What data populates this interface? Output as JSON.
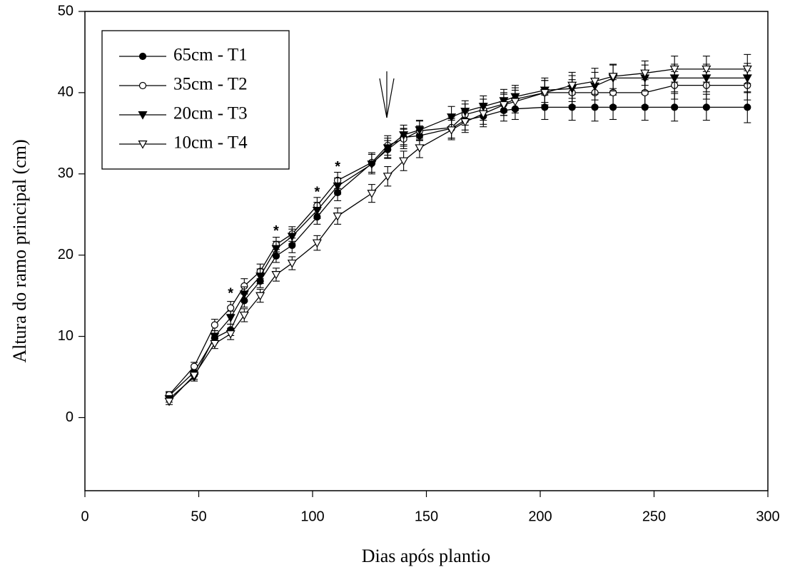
{
  "chart_data": {
    "type": "line",
    "x_label": "Dias após plantio",
    "y_label": "Altura do ramo principal (cm)",
    "x": [
      37,
      48,
      57,
      64,
      70,
      77,
      84,
      91,
      102,
      111,
      126,
      133,
      140,
      147,
      161,
      167,
      175,
      184,
      189,
      202,
      214,
      224,
      232,
      246,
      259,
      273,
      291
    ],
    "series": [
      {
        "name": "65cm - T1",
        "color": "#000000",
        "marker": "circle",
        "filled": true,
        "values": [
          2.7,
          5.6,
          9.8,
          10.8,
          14.4,
          16.8,
          19.9,
          21.2,
          24.7,
          27.7,
          31.3,
          33.0,
          34.5,
          34.7,
          35.6,
          36.6,
          37.1,
          37.8,
          38.0,
          38.2,
          38.2,
          38.2,
          38.2,
          38.2,
          38.2,
          38.2,
          38.2
        ],
        "errors": [
          0.4,
          0.5,
          0.6,
          0.7,
          0.8,
          0.8,
          0.8,
          0.9,
          0.9,
          1.0,
          1.1,
          1.1,
          1.1,
          1.2,
          1.2,
          1.2,
          1.3,
          1.3,
          1.3,
          1.5,
          1.6,
          1.7,
          1.5,
          1.6,
          1.7,
          1.6,
          1.9
        ]
      },
      {
        "name": "35cm - T2",
        "color": "#000000",
        "marker": "circle",
        "filled": false,
        "values": [
          2.8,
          6.3,
          11.4,
          13.5,
          16.2,
          18.0,
          21.3,
          22.6,
          26.1,
          29.2,
          31.4,
          33.5,
          34.3,
          35.3,
          35.7,
          37.3,
          37.9,
          38.6,
          39.2,
          40.0,
          40.0,
          40.0,
          40.0,
          40.0,
          40.9,
          40.9,
          40.9
        ],
        "errors": [
          0.4,
          0.5,
          0.7,
          0.8,
          0.9,
          0.9,
          0.9,
          0.9,
          1.0,
          1.0,
          1.2,
          1.2,
          1.2,
          1.2,
          1.3,
          1.3,
          1.3,
          1.4,
          1.4,
          1.5,
          1.6,
          1.7,
          1.6,
          1.6,
          1.7,
          1.7,
          1.8
        ]
      },
      {
        "name": "20cm - T3",
        "color": "#000000",
        "marker": "triangle-down",
        "filled": true,
        "values": [
          2.3,
          5.0,
          10.0,
          12.3,
          15.2,
          17.4,
          20.8,
          22.3,
          25.5,
          28.5,
          31.2,
          33.2,
          34.8,
          35.4,
          37.0,
          37.7,
          38.3,
          39.0,
          39.5,
          40.3,
          40.5,
          40.8,
          41.8,
          41.8,
          41.8,
          41.8,
          41.8
        ],
        "errors": [
          0.4,
          0.5,
          0.7,
          0.8,
          0.9,
          0.9,
          0.9,
          0.9,
          1.0,
          1.0,
          1.2,
          1.2,
          1.2,
          1.2,
          1.3,
          1.3,
          1.3,
          1.4,
          1.4,
          1.5,
          1.6,
          1.7,
          1.6,
          1.6,
          1.7,
          1.7,
          1.8
        ]
      },
      {
        "name": "10cm - T4",
        "color": "#000000",
        "marker": "triangle-down",
        "filled": false,
        "values": [
          2.0,
          5.2,
          9.1,
          10.3,
          12.6,
          15.0,
          17.6,
          19.0,
          21.5,
          24.8,
          27.6,
          29.7,
          31.6,
          33.2,
          35.4,
          36.4,
          37.4,
          38.5,
          38.9,
          40.0,
          40.9,
          41.4,
          42.0,
          42.4,
          42.9,
          42.9,
          42.9
        ],
        "errors": [
          0.4,
          0.5,
          0.6,
          0.7,
          0.8,
          0.8,
          0.8,
          0.8,
          0.9,
          1.0,
          1.1,
          1.2,
          1.2,
          1.2,
          1.2,
          1.3,
          1.3,
          1.3,
          1.4,
          1.5,
          1.6,
          1.6,
          1.5,
          1.5,
          1.6,
          1.6,
          1.8
        ]
      }
    ],
    "annotations": [
      {
        "text": "*",
        "x": 64,
        "y": 15.2
      },
      {
        "text": "*",
        "x": 84,
        "y": 22.9
      },
      {
        "text": "*",
        "x": 102,
        "y": 27.7
      },
      {
        "text": "*",
        "x": 111,
        "y": 30.8
      }
    ],
    "xlim": [
      0,
      300
    ],
    "xticks": [
      0,
      50,
      100,
      150,
      200,
      250,
      300
    ],
    "ylim": [
      -9,
      50
    ],
    "yticks": [
      0,
      10,
      20,
      30,
      40,
      50
    ],
    "legend": "upper left"
  }
}
